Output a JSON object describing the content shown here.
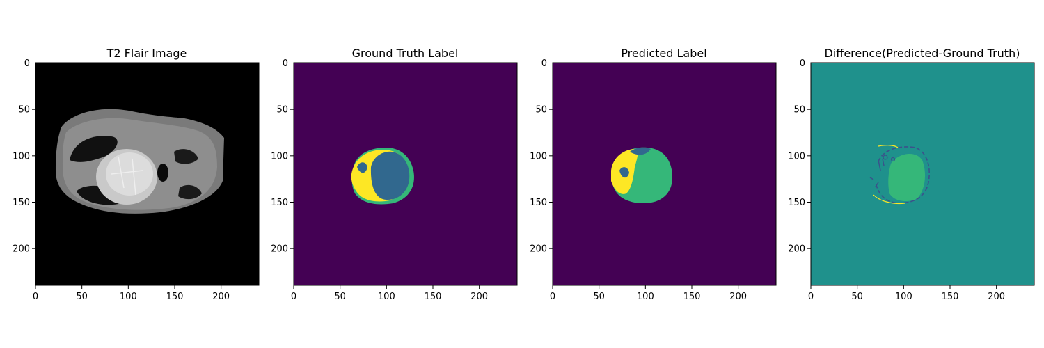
{
  "figure": {
    "panels": [
      {
        "title": "T2 Flair Image",
        "kind": "flair"
      },
      {
        "title": "Ground Truth Label",
        "kind": "gt"
      },
      {
        "title": "Predicted Label",
        "kind": "pred"
      },
      {
        "title": "Difference(Predicted-Ground Truth)",
        "kind": "diff"
      }
    ],
    "x_ticks": [
      "0",
      "50",
      "100",
      "150",
      "200"
    ],
    "y_ticks": [
      "0",
      "50",
      "100",
      "150",
      "200"
    ],
    "axis_range": [
      0,
      240
    ],
    "colors": {
      "black": "#000000",
      "viridis_dark": "#440154",
      "viridis_blue": "#31688e",
      "viridis_teal": "#1f918c",
      "viridis_green": "#35b779",
      "viridis_yellow": "#fde725",
      "viridis_navy": "#3b528b"
    }
  }
}
